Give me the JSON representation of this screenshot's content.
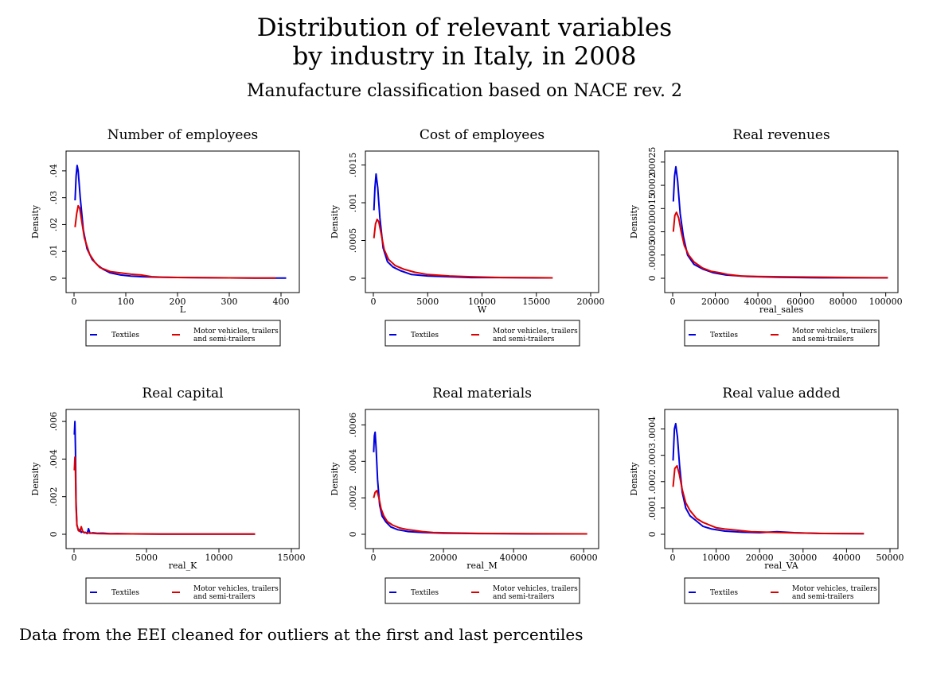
{
  "title_line1": "Distribution of relevant variables",
  "title_line2": "by industry in Italy, in 2008",
  "subtitle": "Manufacture classification based on NACE rev. 2",
  "note": "Data from the EEI cleaned for outliers at the first and last percentiles",
  "colors": {
    "Textiles": "#0000dd",
    "Motor vehicles, trailers and semi-trailers": "#dd0000"
  },
  "legend": {
    "textiles": "Textiles",
    "motor_line1": "Motor vehicles, trailers",
    "motor_line2": "and semi-trailers"
  },
  "chart_data": [
    {
      "type": "line",
      "title": "Number of employees",
      "xlabel": "L",
      "ylabel": "Density",
      "xlim": [
        0,
        420
      ],
      "ylim": [
        0,
        0.045
      ],
      "xticks": [
        0,
        100,
        200,
        300,
        400
      ],
      "xtick_labels": [
        "0",
        "100",
        "200",
        "300",
        "400"
      ],
      "yticks": [
        0,
        0.01,
        0.02,
        0.03,
        0.04
      ],
      "ytick_labels": [
        "0",
        ".01",
        ".02",
        ".03",
        ".04"
      ],
      "series": [
        {
          "name": "Textiles",
          "x": [
            2,
            4,
            6,
            8,
            12,
            18,
            25,
            35,
            45,
            55,
            70,
            90,
            110,
            130,
            160,
            200,
            250,
            300,
            350,
            410
          ],
          "y": [
            0.029,
            0.038,
            0.042,
            0.04,
            0.03,
            0.018,
            0.011,
            0.007,
            0.005,
            0.0035,
            0.002,
            0.0012,
            0.0008,
            0.0006,
            0.0004,
            0.0003,
            0.0002,
            0.00015,
            0.0001,
            0.0001
          ]
        },
        {
          "name": "Motor vehicles, trailers and semi-trailers",
          "x": [
            2,
            5,
            8,
            11,
            15,
            20,
            30,
            40,
            50,
            70,
            90,
            110,
            130,
            140,
            150,
            170,
            200,
            250,
            300,
            350,
            390
          ],
          "y": [
            0.019,
            0.024,
            0.027,
            0.026,
            0.021,
            0.015,
            0.009,
            0.006,
            0.004,
            0.0025,
            0.002,
            0.0015,
            0.0012,
            0.0009,
            0.0006,
            0.0004,
            0.0003,
            0.0002,
            0.00015,
            0.0001,
            0.0001
          ]
        }
      ]
    },
    {
      "type": "line",
      "title": "Cost of employees",
      "xlabel": "W",
      "ylabel": "Density",
      "xlim": [
        0,
        20000
      ],
      "ylim": [
        0,
        0.0016
      ],
      "xticks": [
        0,
        5000,
        10000,
        15000,
        20000
      ],
      "xtick_labels": [
        "0",
        "5000",
        "10000",
        "15000",
        "20000"
      ],
      "yticks": [
        0,
        0.0005,
        0.001,
        0.0015
      ],
      "ytick_labels": [
        "0",
        ".0005",
        ".001",
        ".0015"
      ],
      "series": [
        {
          "name": "Textiles",
          "x": [
            50,
            150,
            250,
            400,
            600,
            900,
            1300,
            1800,
            2500,
            3500,
            5000,
            7000,
            9000,
            12000,
            15000,
            16500
          ],
          "y": [
            0.0009,
            0.0012,
            0.00138,
            0.0012,
            0.0008,
            0.0004,
            0.00022,
            0.00015,
            0.0001,
            5e-05,
            3e-05,
            2e-05,
            1e-05,
            1e-05,
            5e-06,
            5e-06
          ]
        },
        {
          "name": "Motor vehicles, trailers and semi-trailers",
          "x": [
            50,
            200,
            350,
            500,
            700,
            1000,
            1400,
            2000,
            2800,
            3800,
            5000,
            7000,
            9000,
            12000,
            15000,
            16500
          ],
          "y": [
            0.00053,
            0.00072,
            0.00078,
            0.00075,
            0.0006,
            0.00038,
            0.00025,
            0.00017,
            0.00012,
            8e-05,
            5e-05,
            3e-05,
            2e-05,
            1e-05,
            8e-06,
            5e-06
          ]
        }
      ]
    },
    {
      "type": "line",
      "title": "Real revenues",
      "xlabel": "real_sales",
      "ylabel": "Density",
      "xlim": [
        0,
        102000
      ],
      "ylim": [
        0,
        0.00026
      ],
      "xticks": [
        0,
        20000,
        40000,
        60000,
        80000,
        100000
      ],
      "xtick_labels": [
        "0",
        "20000",
        "40000",
        "60000",
        "80000",
        "100000"
      ],
      "yticks": [
        0,
        5e-05,
        0.0001,
        0.00015,
        0.0002,
        0.00025
      ],
      "ytick_labels": [
        "0",
        ".00005",
        ".0001",
        ".00015",
        ".0002",
        ".00025"
      ],
      "series": [
        {
          "name": "Textiles",
          "x": [
            300,
            900,
            1500,
            2300,
            3500,
            5000,
            7000,
            10000,
            14000,
            19000,
            25000,
            35000,
            50000,
            70000,
            90000,
            101000
          ],
          "y": [
            0.000165,
            0.00022,
            0.00024,
            0.00021,
            0.00014,
            9e-05,
            5e-05,
            3e-05,
            2e-05,
            1.2e-05,
            7e-06,
            4e-06,
            2e-06,
            1e-06,
            1e-06,
            1e-06
          ]
        },
        {
          "name": "Motor vehicles, trailers and semi-trailers",
          "x": [
            300,
            1000,
            1800,
            2800,
            4000,
            5500,
            7500,
            10000,
            14000,
            18000,
            22000,
            26000,
            32000,
            40000,
            55000,
            75000,
            95000,
            101000
          ],
          "y": [
            0.0001,
            0.000135,
            0.000142,
            0.00013,
            0.0001,
            7e-05,
            5e-05,
            3.5e-05,
            2.2e-05,
            1.5e-05,
            1.2e-05,
            8e-06,
            5e-06,
            4e-06,
            3e-06,
            2e-06,
            1e-06,
            1e-06
          ]
        }
      ]
    },
    {
      "type": "line",
      "title": "Real capital",
      "xlabel": "real_K",
      "ylabel": "Density",
      "xlim": [
        0,
        15000
      ],
      "ylim": [
        0,
        0.0063
      ],
      "xticks": [
        0,
        5000,
        10000,
        15000
      ],
      "xtick_labels": [
        "0",
        "5000",
        "10000",
        "15000"
      ],
      "yticks": [
        0,
        0.002,
        0.004,
        0.006
      ],
      "ytick_labels": [
        "0",
        ".002",
        ".004",
        ".006"
      ],
      "series": [
        {
          "name": "Textiles",
          "x": [
            20,
            60,
            100,
            140,
            200,
            300,
            400,
            500,
            600,
            700,
            800,
            900,
            1000,
            1100,
            1300,
            1600,
            2000,
            2500,
            3000,
            4000,
            6000,
            8000,
            10000,
            12500
          ],
          "y": [
            0.0053,
            0.006,
            0.0045,
            0.0018,
            0.0005,
            0.0002,
            0.00025,
            0.0001,
            0.00015,
            8e-05,
            0.0001,
            4e-05,
            0.0003,
            5e-05,
            8e-05,
            5e-05,
            6e-05,
            3e-05,
            4e-05,
            2e-05,
            1e-05,
            1e-05,
            1e-05,
            1e-05
          ]
        },
        {
          "name": "Motor vehicles, trailers and semi-trailers",
          "x": [
            20,
            60,
            100,
            140,
            200,
            300,
            400,
            500,
            600,
            700,
            900,
            1200,
            1600,
            2000,
            2500,
            3000,
            4000,
            6000,
            8000,
            10000,
            12500
          ],
          "y": [
            0.0034,
            0.0041,
            0.0033,
            0.0015,
            0.0005,
            0.0002,
            0.00015,
            0.0004,
            0.00015,
            0.0001,
            8e-05,
            6e-05,
            4e-05,
            3e-05,
            2e-05,
            2e-05,
            2e-05,
            1e-05,
            1e-05,
            1e-05,
            1e-05
          ]
        }
      ]
    },
    {
      "type": "line",
      "title": "Real materials",
      "xlabel": "real_M",
      "ylabel": "Density",
      "xlim": [
        0,
        62000
      ],
      "ylim": [
        0,
        0.00065
      ],
      "xticks": [
        0,
        20000,
        40000,
        60000
      ],
      "xtick_labels": [
        "0",
        "20000",
        "40000",
        "60000"
      ],
      "yticks": [
        0,
        0.0002,
        0.0004,
        0.0006
      ],
      "ytick_labels": [
        "0",
        ".0002",
        ".0004",
        ".0006"
      ],
      "series": [
        {
          "name": "Textiles",
          "x": [
            100,
            300,
            500,
            800,
            1200,
            1800,
            2500,
            3500,
            5000,
            7000,
            10000,
            14000,
            20000,
            30000,
            45000,
            61000
          ],
          "y": [
            0.00045,
            0.00054,
            0.00056,
            0.00047,
            0.0003,
            0.00016,
            0.0001,
            7e-05,
            4e-05,
            2.5e-05,
            1.5e-05,
            1e-05,
            6e-06,
            4e-06,
            2e-06,
            2e-06
          ]
        },
        {
          "name": "Motor vehicles, trailers and semi-trailers",
          "x": [
            100,
            500,
            1000,
            1600,
            2200,
            3000,
            4000,
            5500,
            7500,
            10000,
            12000,
            14000,
            17000,
            22000,
            30000,
            45000,
            61000
          ],
          "y": [
            0.0002,
            0.00023,
            0.00024,
            0.0002,
            0.00014,
            0.0001,
            7e-05,
            5e-05,
            3.5e-05,
            2.5e-05,
            2e-05,
            1.5e-05,
            1e-05,
            8e-06,
            5e-06,
            3e-06,
            2e-06
          ]
        }
      ]
    },
    {
      "type": "line",
      "title": "Real value added",
      "xlabel": "real_VA",
      "ylabel": "Density",
      "xlim": [
        0,
        50000
      ],
      "ylim": [
        0,
        0.00045
      ],
      "xticks": [
        0,
        10000,
        20000,
        30000,
        40000,
        50000
      ],
      "xtick_labels": [
        "0",
        "10000",
        "20000",
        "30000",
        "40000",
        "50000"
      ],
      "yticks": [
        0,
        0.0001,
        0.0002,
        0.0003,
        0.0004
      ],
      "ytick_labels": [
        "0",
        ".0001",
        ".0002",
        ".0003",
        ".0004"
      ],
      "series": [
        {
          "name": "Textiles",
          "x": [
            100,
            400,
            700,
            1100,
            1600,
            2200,
            3000,
            4000,
            5500,
            7000,
            9000,
            12000,
            16000,
            20000,
            24000,
            28000,
            34000,
            44000
          ],
          "y": [
            0.00028,
            0.0004,
            0.00042,
            0.00037,
            0.00026,
            0.00016,
            0.0001,
            7e-05,
            5e-05,
            3e-05,
            2e-05,
            1.2e-05,
            8e-06,
            6e-06,
            1e-05,
            6e-06,
            3e-06,
            2e-06
          ]
        },
        {
          "name": "Motor vehicles, trailers and semi-trailers",
          "x": [
            100,
            500,
            1000,
            1500,
            2200,
            3000,
            4000,
            5500,
            7000,
            8500,
            10000,
            12000,
            15000,
            18000,
            22000,
            28000,
            35000,
            44000
          ],
          "y": [
            0.00018,
            0.00025,
            0.00026,
            0.00023,
            0.00017,
            0.00012,
            9e-05,
            6e-05,
            4.5e-05,
            3.5e-05,
            2.5e-05,
            2e-05,
            1.5e-05,
            1e-05,
            8e-06,
            5e-06,
            3e-06,
            2e-06
          ]
        }
      ]
    }
  ]
}
